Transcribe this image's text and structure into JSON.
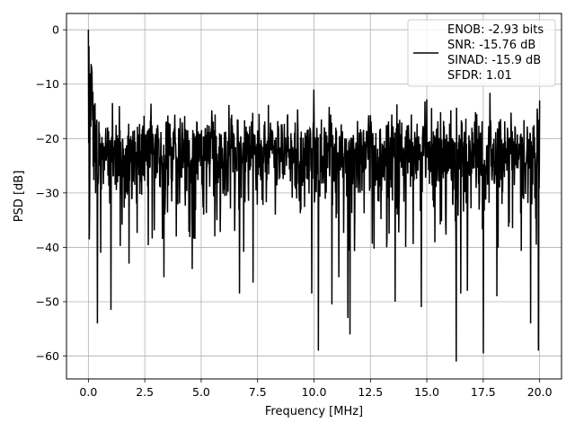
{
  "chart_data": {
    "type": "line",
    "title": "",
    "xlabel": "Frequency [MHz]",
    "ylabel": "PSD [dB]",
    "xlim": [
      -0.97,
      20.97
    ],
    "ylim": [
      -64.2,
      3.0
    ],
    "xticks": [
      0.0,
      2.5,
      5.0,
      7.5,
      10.0,
      12.5,
      15.0,
      17.5,
      20.0
    ],
    "xtick_labels": [
      "0.0",
      "2.5",
      "5.0",
      "7.5",
      "10.0",
      "12.5",
      "15.0",
      "17.5",
      "20.0"
    ],
    "yticks": [
      0,
      -10,
      -20,
      -30,
      -40,
      -50,
      -60
    ],
    "ytick_labels": [
      "0",
      "−10",
      "−20",
      "−30",
      "−40",
      "−50",
      "−60"
    ],
    "grid": true,
    "legend_placement": "top-right",
    "series": [
      {
        "name": "ENOB: -2.93 bits\nSNR: -15.76 dB\nSINAD: -15.9 dB\nSFDR: 1.01",
        "legend_lines": [
          "ENOB: -2.93 bits",
          "SNR: -15.76 dB",
          "SINAD: -15.9 dB",
          "SFDR: 1.01"
        ],
        "color": "#000000",
        "x_range": [
          0.0,
          20.0
        ],
        "noise_model": {
          "points": 1500,
          "median_db": -23.0,
          "upper_envelope_db": -13.0,
          "typical_lower_db": -33.0,
          "seed": 7
        },
        "peaks": [
          {
            "x": 0.0,
            "y": 0.0
          },
          {
            "x": 0.03,
            "y": -3.0
          },
          {
            "x": 0.08,
            "y": -8.0
          },
          {
            "x": 0.15,
            "y": -12.0
          },
          {
            "x": 0.25,
            "y": -14.0
          },
          {
            "x": 10.0,
            "y": -11.0
          },
          {
            "x": 11.5,
            "y": -11.5
          },
          {
            "x": 13.6,
            "y": -12.3
          },
          {
            "x": 15.0,
            "y": -12.8
          },
          {
            "x": 17.8,
            "y": -11.6
          },
          {
            "x": 20.0,
            "y": -13.0
          }
        ],
        "dips": [
          {
            "x": 0.05,
            "y": -33.5
          },
          {
            "x": 0.4,
            "y": -54.0
          },
          {
            "x": 0.55,
            "y": -41.0
          },
          {
            "x": 1.0,
            "y": -51.5
          },
          {
            "x": 1.8,
            "y": -43.0
          },
          {
            "x": 3.35,
            "y": -45.5
          },
          {
            "x": 4.6,
            "y": -44.0
          },
          {
            "x": 6.7,
            "y": -48.5
          },
          {
            "x": 7.3,
            "y": -46.5
          },
          {
            "x": 9.9,
            "y": -48.5
          },
          {
            "x": 10.2,
            "y": -59.0
          },
          {
            "x": 10.8,
            "y": -50.5
          },
          {
            "x": 11.1,
            "y": -45.5
          },
          {
            "x": 11.5,
            "y": -53.0
          },
          {
            "x": 11.6,
            "y": -56.0
          },
          {
            "x": 13.6,
            "y": -50.0
          },
          {
            "x": 14.75,
            "y": -51.0
          },
          {
            "x": 16.3,
            "y": -61.0
          },
          {
            "x": 16.5,
            "y": -48.5
          },
          {
            "x": 16.8,
            "y": -48.0
          },
          {
            "x": 17.5,
            "y": -59.5
          },
          {
            "x": 18.1,
            "y": -49.0
          },
          {
            "x": 19.6,
            "y": -54.0
          },
          {
            "x": 19.95,
            "y": -59.0
          }
        ]
      }
    ]
  }
}
